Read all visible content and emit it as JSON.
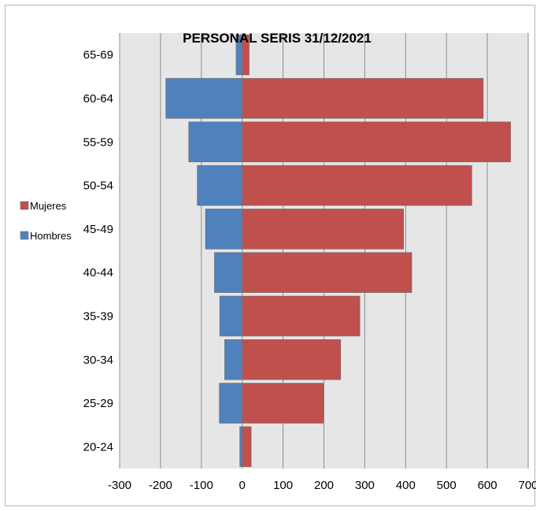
{
  "chart_data": {
    "type": "bar",
    "orientation": "horizontal",
    "title": "PERSONAL SERIS 31/12/2021",
    "categories": [
      "65-69",
      "60-64",
      "55-59",
      "50-54",
      "45-49",
      "40-44",
      "35-39",
      "30-34",
      "25-29",
      "20-24"
    ],
    "series": [
      {
        "name": "Mujeres",
        "color": "#c0504d",
        "values": [
          17,
          590,
          657,
          562,
          395,
          415,
          288,
          241,
          199,
          22
        ]
      },
      {
        "name": "Hombres",
        "color": "#4f81bd",
        "values": [
          -15,
          -187,
          -131,
          -110,
          -90,
          -68,
          -55,
          -43,
          -56,
          -6
        ]
      }
    ],
    "xlim": [
      -300,
      700
    ],
    "xticks": [
      -300,
      -200,
      -100,
      0,
      100,
      200,
      300,
      400,
      500,
      600,
      700
    ],
    "xtick_labels": [
      "-300",
      "-200",
      "-100",
      "0",
      "100",
      "200",
      "300",
      "400",
      "500",
      "600",
      "700"
    ],
    "xlabel": "",
    "ylabel": "",
    "grid": "vertical",
    "legend": "left",
    "plot_background": "#e6e6e6"
  }
}
